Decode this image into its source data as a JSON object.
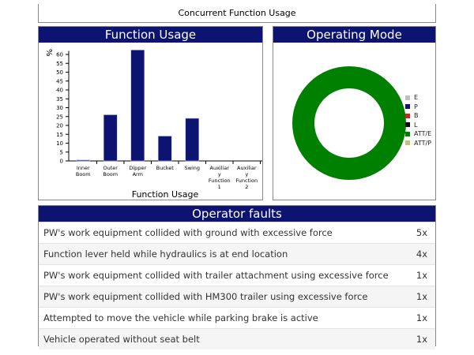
{
  "title": "Concurrent Function Usage",
  "function_usage": {
    "header": "Function Usage"
  },
  "operating_mode": {
    "header": "Operating Mode",
    "legend": [
      {
        "label": "E",
        "color": "#c0c0c0"
      },
      {
        "label": "P",
        "color": "#0c1370"
      },
      {
        "label": "B",
        "color": "#c0282d"
      },
      {
        "label": "L",
        "color": "#000000"
      },
      {
        "label": "ATT/E",
        "color": "#008000"
      },
      {
        "label": "ATT/P",
        "color": "#c8c07a"
      }
    ],
    "donut_values": {
      "E": 0,
      "P": 0,
      "B": 0,
      "L": 0,
      "ATT/E": 100,
      "ATT/P": 0
    }
  },
  "chart_data": {
    "type": "bar",
    "xlabel": "Function Usage",
    "ylabel": "%",
    "ylim": [
      0,
      62
    ],
    "yticks": [
      0,
      5,
      10,
      15,
      20,
      25,
      30,
      35,
      40,
      45,
      50,
      55,
      60
    ],
    "categories": [
      "Inner Boom",
      "Outer Boom",
      "Dipper Arm",
      "Bucket",
      "Swing",
      "Auxiliary Function 1",
      "Auxiliary Function 2"
    ],
    "values": [
      0.5,
      26,
      62.5,
      14,
      24,
      0,
      0
    ],
    "color": "#0c1370"
  },
  "faults": {
    "header": "Operator faults",
    "rows": [
      {
        "text": "PW's work equipment collided with ground with excessive force",
        "count": "5x"
      },
      {
        "text": "Function lever held while hydraulics is at end location",
        "count": "4x"
      },
      {
        "text": "PW's work equipment collided with trailer attachment using excessive force",
        "count": "1x"
      },
      {
        "text": "PW's work equipment collided with HM300 trailer using excessive force",
        "count": "1x"
      },
      {
        "text": "Attempted to move the vehicle while parking brake is active",
        "count": "1x"
      },
      {
        "text": "Vehicle operated without seat belt",
        "count": "1x"
      }
    ]
  }
}
